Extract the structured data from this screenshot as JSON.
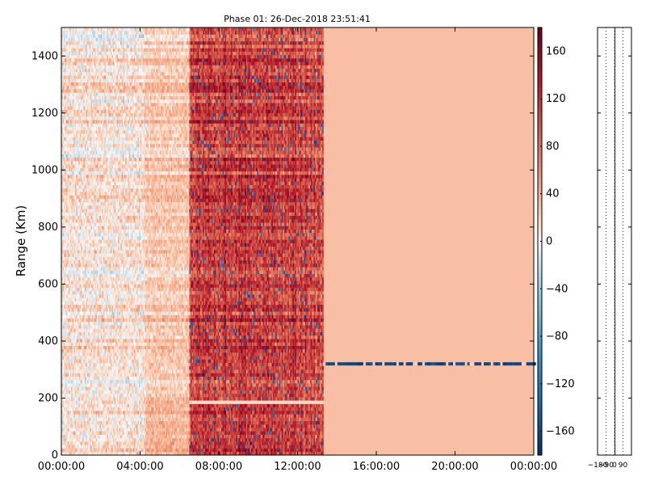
{
  "chart_data": [
    {
      "type": "heatmap",
      "title": "Phase 01: 26-Dec-2018 23:51:41",
      "xlabel": "",
      "ylabel": "Range (Km)",
      "x_ticks": [
        "00:00:00",
        "04:00:00",
        "08:00:00",
        "12:00:00",
        "16:00:00",
        "20:00:00",
        "00:00:00"
      ],
      "x_range_hours": [
        0,
        24
      ],
      "y_ticks": [
        0,
        200,
        400,
        600,
        800,
        1000,
        1200,
        1400
      ],
      "ylim": [
        0,
        1500
      ],
      "colorbar": {
        "ticks": [
          "160",
          "120",
          "80",
          "40",
          "0",
          "−40",
          "−80",
          "−120",
          "−160"
        ],
        "range": [
          -180,
          180
        ],
        "colormap": "RdBu_r"
      },
      "regions": [
        {
          "from_hour": 0,
          "to_hour": 4.2,
          "description": "mixed",
          "typical_value": 10
        },
        {
          "from_hour": 4.2,
          "to_hour": 6.5,
          "description": "mixed",
          "typical_value": 25
        },
        {
          "from_hour": 6.5,
          "to_hour": 13.3,
          "description": "noisy high phase",
          "typical_value": 110
        },
        {
          "from_hour": 13.3,
          "to_hour": 24,
          "description": "uniform",
          "typical_value": 30
        }
      ],
      "bands": [
        {
          "range_km": 320,
          "from_hour": 13.3,
          "to_hour": 24,
          "typical_value": -160
        }
      ]
    },
    {
      "type": "line",
      "x_ticks": [
        "−180",
        "−90",
        "0",
        "90"
      ],
      "xlim": [
        -180,
        180
      ],
      "ylim": [
        0,
        1500
      ],
      "grid": true,
      "series_color": "#0000cc"
    }
  ],
  "colors": {
    "axis": "#000000",
    "trace": "#0000cc",
    "band": "#1f4e8c"
  }
}
